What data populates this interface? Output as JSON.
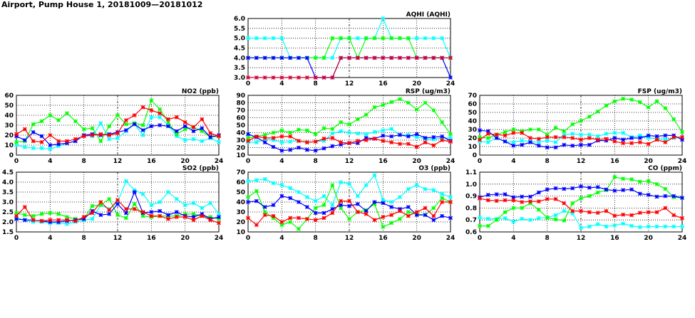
{
  "title": "Airport, Pump House 1, 20181009—20181012",
  "colors": {
    "red": "#ff0000",
    "blue": "#0000ff",
    "cyan": "#00ffff",
    "green": "#00ff00",
    "darkred": "#cc0033"
  },
  "chart_data": [
    {
      "id": "aqhi",
      "type": "line",
      "title": "AQHI (AQHI)",
      "xlim": [
        0,
        24
      ],
      "xticks": [
        0,
        4,
        8,
        12,
        16,
        20,
        24
      ],
      "ylim": [
        3,
        6
      ],
      "yticks": [
        3.0,
        3.5,
        4.0,
        4.5,
        5.0,
        5.5,
        6.0
      ],
      "ydecimals": 1,
      "grid": true,
      "series": [
        {
          "color": "cyan",
          "values": [
            5,
            5,
            5,
            5,
            5,
            4,
            4,
            4,
            4,
            4,
            4,
            5,
            5,
            5,
            5,
            5,
            6,
            5,
            5,
            5,
            5,
            5,
            5,
            5,
            4
          ]
        },
        {
          "color": "green",
          "values": [
            4,
            4,
            4,
            4,
            4,
            4,
            4,
            4,
            4,
            4,
            5,
            5,
            5,
            4,
            5,
            5,
            5,
            5,
            5,
            5,
            4,
            4,
            4,
            4,
            4
          ]
        },
        {
          "color": "blue",
          "values": [
            4,
            4,
            4,
            4,
            4,
            4,
            4,
            4,
            3,
            3,
            3,
            4,
            4,
            4,
            4,
            4,
            4,
            4,
            4,
            4,
            4,
            4,
            4,
            4,
            3
          ]
        },
        {
          "color": "darkred",
          "values": [
            3,
            3,
            3,
            3,
            3,
            3,
            3,
            3,
            3,
            3,
            3,
            4,
            4,
            4,
            4,
            4,
            4,
            4,
            4,
            4,
            4,
            4,
            4,
            4,
            4
          ]
        }
      ]
    },
    {
      "id": "no2",
      "type": "line",
      "title": "NO2 (ppb)",
      "xlim": [
        0,
        24
      ],
      "xticks": [
        0,
        4,
        8,
        12,
        16,
        20,
        24
      ],
      "ylim": [
        0,
        60
      ],
      "yticks": [
        0,
        10,
        20,
        30,
        40,
        50,
        60
      ],
      "ydecimals": 0,
      "grid": true,
      "series": [
        {
          "color": "cyan",
          "values": [
            10,
            8,
            7,
            7,
            6,
            9,
            12,
            14,
            20,
            19,
            32,
            16,
            17,
            24,
            31,
            20,
            38,
            38,
            30,
            19,
            15,
            16,
            14,
            17,
            13
          ]
        },
        {
          "color": "green",
          "values": [
            13,
            14,
            31,
            34,
            40,
            35,
            42,
            34,
            26,
            27,
            14,
            29,
            40,
            31,
            32,
            30,
            55,
            46,
            33,
            21,
            26,
            28,
            24,
            18,
            19
          ]
        },
        {
          "color": "blue",
          "values": [
            19,
            15,
            23,
            19,
            10,
            11,
            12,
            14,
            20,
            21,
            20,
            21,
            23,
            25,
            31,
            25,
            29,
            30,
            29,
            24,
            29,
            24,
            27,
            18,
            20
          ]
        },
        {
          "color": "red",
          "values": [
            21,
            26,
            14,
            13,
            20,
            14,
            14,
            16,
            19,
            20,
            21,
            20,
            22,
            35,
            40,
            48,
            45,
            42,
            36,
            38,
            33,
            28,
            36,
            22,
            19
          ]
        }
      ]
    },
    {
      "id": "rsp",
      "type": "line",
      "title": "RSP (ug/m3)",
      "xlim": [
        0,
        24
      ],
      "xticks": [
        0,
        4,
        8,
        12,
        16,
        20,
        24
      ],
      "ylim": [
        10,
        90
      ],
      "yticks": [
        10,
        20,
        30,
        40,
        50,
        60,
        70,
        80,
        90
      ],
      "ydecimals": 0,
      "grid": true,
      "series": [
        {
          "color": "cyan",
          "values": [
            27,
            27,
            31,
            30,
            27,
            28,
            29,
            27,
            28,
            29,
            39,
            42,
            40,
            39,
            38,
            41,
            43,
            45,
            37,
            37,
            34,
            32,
            31,
            33,
            33
          ]
        },
        {
          "color": "green",
          "values": [
            33,
            35,
            37,
            40,
            43,
            40,
            44,
            43,
            38,
            46,
            45,
            54,
            51,
            58,
            64,
            74,
            77,
            81,
            85,
            80,
            71,
            80,
            70,
            54,
            38
          ]
        },
        {
          "color": "blue",
          "values": [
            38,
            34,
            27,
            21,
            16,
            17,
            20,
            17,
            16,
            19,
            22,
            24,
            26,
            26,
            33,
            32,
            36,
            35,
            37,
            35,
            38,
            33,
            34,
            35,
            29
          ]
        },
        {
          "color": "red",
          "values": [
            29,
            35,
            33,
            33,
            35,
            35,
            29,
            27,
            28,
            32,
            33,
            27,
            26,
            29,
            30,
            32,
            29,
            27,
            25,
            25,
            21,
            27,
            23,
            30,
            28
          ]
        }
      ]
    },
    {
      "id": "fsp",
      "type": "line",
      "title": "FSP (ug/m3)",
      "xlim": [
        0,
        24
      ],
      "xticks": [
        0,
        4,
        8,
        12,
        16,
        20,
        24
      ],
      "ylim": [
        0,
        70
      ],
      "yticks": [
        0,
        10,
        20,
        30,
        40,
        50,
        60,
        70
      ],
      "ydecimals": 0,
      "grid": true,
      "series": [
        {
          "color": "cyan",
          "values": [
            16,
            15,
            20,
            16,
            15,
            17,
            16,
            15,
            17,
            15,
            24,
            25,
            24,
            24,
            22,
            25,
            26,
            26,
            21,
            23,
            20,
            19,
            18,
            20,
            21
          ]
        },
        {
          "color": "green",
          "values": [
            21,
            20,
            24,
            27,
            30,
            28,
            30,
            30,
            24,
            32,
            28,
            36,
            40,
            45,
            51,
            58,
            63,
            66,
            65,
            62,
            56,
            63,
            55,
            42,
            27
          ]
        },
        {
          "color": "blue",
          "values": [
            29,
            28,
            20,
            16,
            11,
            12,
            15,
            11,
            9,
            9,
            12,
            11,
            12,
            12,
            17,
            17,
            20,
            18,
            20,
            20,
            23,
            22,
            23,
            23,
            18
          ]
        },
        {
          "color": "red",
          "values": [
            18,
            25,
            24,
            23,
            26,
            26,
            20,
            19,
            21,
            21,
            21,
            20,
            18,
            20,
            18,
            19,
            16,
            14,
            14,
            15,
            13,
            18,
            15,
            21,
            21
          ]
        }
      ]
    },
    {
      "id": "so2",
      "type": "line",
      "title": "SO2 (ppb)",
      "xlim": [
        0,
        24
      ],
      "xticks": [
        0,
        4,
        8,
        12,
        16,
        20,
        24
      ],
      "ylim": [
        1.5,
        4.5
      ],
      "yticks": [
        1.5,
        2.0,
        2.5,
        3.0,
        3.5,
        4.0,
        4.5
      ],
      "ydecimals": 1,
      "grid": true,
      "series": [
        {
          "color": "cyan",
          "values": [
            2.2,
            2.1,
            2.0,
            2.0,
            1.95,
            1.95,
            1.9,
            2.0,
            2.1,
            2.15,
            2.85,
            2.65,
            3.0,
            4.05,
            3.6,
            3.4,
            2.85,
            3.0,
            3.5,
            3.15,
            2.85,
            2.95,
            2.7,
            2.95,
            2.4
          ]
        },
        {
          "color": "green",
          "values": [
            2.45,
            2.35,
            2.3,
            2.4,
            2.45,
            2.4,
            2.25,
            2.15,
            2.15,
            2.8,
            2.85,
            3.15,
            2.35,
            2.2,
            2.9,
            2.3,
            2.25,
            2.3,
            2.3,
            2.3,
            2.4,
            2.4,
            2.3,
            2.25,
            2.15
          ]
        },
        {
          "color": "blue",
          "values": [
            2.15,
            2.1,
            2.1,
            2.05,
            2.0,
            2.0,
            2.05,
            2.1,
            2.15,
            2.55,
            2.35,
            2.4,
            2.9,
            2.45,
            3.5,
            2.45,
            2.5,
            2.55,
            2.35,
            2.5,
            2.3,
            2.25,
            2.4,
            2.15,
            2.25
          ]
        },
        {
          "color": "red",
          "values": [
            2.3,
            2.75,
            2.1,
            2.05,
            2.1,
            2.1,
            2.1,
            2.05,
            2.25,
            2.45,
            3.0,
            2.6,
            3.1,
            2.65,
            2.65,
            2.5,
            2.3,
            2.3,
            2.15,
            2.25,
            2.25,
            2.1,
            2.3,
            2.1,
            1.95
          ]
        }
      ]
    },
    {
      "id": "o3",
      "type": "line",
      "title": "O3 (ppb)",
      "xlim": [
        0,
        24
      ],
      "xticks": [
        0,
        4,
        8,
        12,
        16,
        20,
        24
      ],
      "ylim": [
        10,
        70
      ],
      "yticks": [
        10,
        20,
        30,
        40,
        50,
        60,
        70
      ],
      "ydecimals": 0,
      "grid": true,
      "series": [
        {
          "color": "cyan",
          "values": [
            61,
            62,
            63,
            59,
            57,
            54,
            50,
            45,
            41,
            46,
            37,
            60,
            58,
            46,
            57,
            67,
            42,
            40,
            45,
            53,
            57,
            53,
            52,
            48,
            45
          ]
        },
        {
          "color": "green",
          "values": [
            45,
            51,
            30,
            24,
            17,
            20,
            13,
            23,
            34,
            37,
            57,
            34,
            23,
            30,
            32,
            38,
            15,
            19,
            23,
            30,
            28,
            27,
            34,
            44,
            40
          ]
        },
        {
          "color": "blue",
          "values": [
            40,
            41,
            35,
            37,
            46,
            44,
            40,
            35,
            29,
            29,
            33,
            37,
            36,
            38,
            31,
            40,
            39,
            35,
            33,
            35,
            27,
            27,
            22,
            26,
            24
          ]
        },
        {
          "color": "red",
          "values": [
            24,
            17,
            27,
            26,
            20,
            24,
            24,
            23,
            22,
            24,
            29,
            41,
            41,
            30,
            28,
            22,
            25,
            27,
            31,
            26,
            30,
            34,
            26,
            40,
            40
          ]
        }
      ]
    },
    {
      "id": "co",
      "type": "line",
      "title": "CO (ppm)",
      "xlim": [
        0,
        24
      ],
      "xticks": [
        0,
        4,
        8,
        12,
        16,
        20,
        24
      ],
      "ylim": [
        0.6,
        1.1
      ],
      "yticks": [
        0.6,
        0.7,
        0.8,
        0.9,
        1.0,
        1.1
      ],
      "ydecimals": 1,
      "grid": true,
      "series": [
        {
          "color": "cyan",
          "values": [
            0.72,
            0.71,
            0.71,
            0.715,
            0.685,
            0.71,
            0.7,
            0.715,
            0.72,
            0.74,
            0.775,
            0.755,
            0.635,
            0.645,
            0.665,
            0.645,
            0.655,
            0.67,
            0.65,
            0.64,
            0.645,
            0.645,
            0.645,
            0.645,
            0.645
          ]
        },
        {
          "color": "green",
          "values": [
            0.65,
            0.65,
            0.7,
            0.765,
            0.8,
            0.8,
            0.84,
            0.785,
            0.72,
            0.705,
            0.695,
            0.84,
            0.88,
            0.9,
            0.93,
            0.95,
            1.06,
            1.045,
            1.04,
            1.02,
            1.025,
            1.0,
            0.96,
            0.89,
            0.885
          ]
        },
        {
          "color": "blue",
          "values": [
            0.89,
            0.91,
            0.915,
            0.915,
            0.89,
            0.895,
            0.895,
            0.93,
            0.955,
            0.965,
            0.96,
            0.965,
            0.98,
            0.97,
            0.975,
            0.955,
            0.945,
            0.95,
            0.955,
            0.92,
            0.91,
            0.895,
            0.9,
            0.9,
            0.885
          ]
        },
        {
          "color": "red",
          "values": [
            0.88,
            0.865,
            0.86,
            0.865,
            0.865,
            0.85,
            0.855,
            0.855,
            0.875,
            0.875,
            0.84,
            0.775,
            0.775,
            0.765,
            0.76,
            0.775,
            0.735,
            0.745,
            0.74,
            0.76,
            0.765,
            0.765,
            0.8,
            0.74,
            0.715
          ]
        }
      ]
    }
  ]
}
